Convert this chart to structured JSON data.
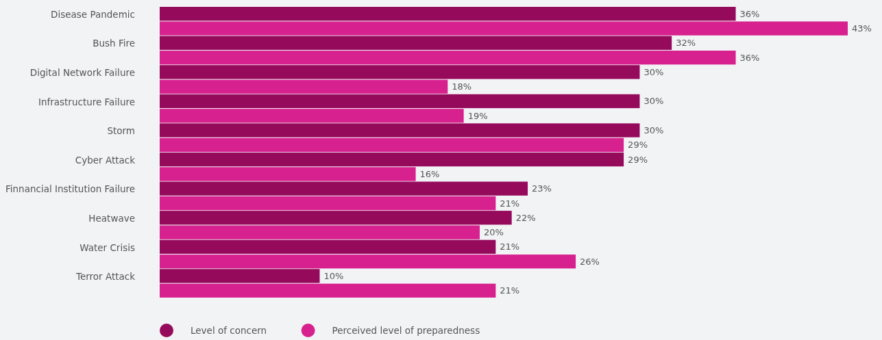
{
  "chart_data": {
    "type": "bar",
    "orientation": "horizontal",
    "categories": [
      "Disease Pandemic",
      "Bush Fire",
      "Digital Network Failure",
      "Infrastructure Failure",
      "Storm",
      "Cyber Attack",
      "Finnancial Institution Failure",
      "Heatwave",
      "Water Crisis",
      "Terror Attack"
    ],
    "series": [
      {
        "name": "Level of concern",
        "color": "#960a5c",
        "values": [
          36,
          32,
          30,
          30,
          30,
          29,
          23,
          22,
          21,
          10
        ],
        "value_labels": [
          "36%",
          "32%",
          "30%",
          "30%",
          "30%",
          "29%",
          "23%",
          "22%",
          "21%",
          "10%"
        ]
      },
      {
        "name": "Perceived level of preparedness",
        "color": "#d7218e",
        "values": [
          43,
          36,
          18,
          19,
          29,
          16,
          21,
          20,
          26,
          21
        ],
        "value_labels": [
          "43%",
          "36%",
          "18%",
          "19%",
          "29%",
          "16%",
          "21%",
          "20%",
          "26%",
          "21%"
        ]
      }
    ],
    "legend": "bottom left"
  }
}
